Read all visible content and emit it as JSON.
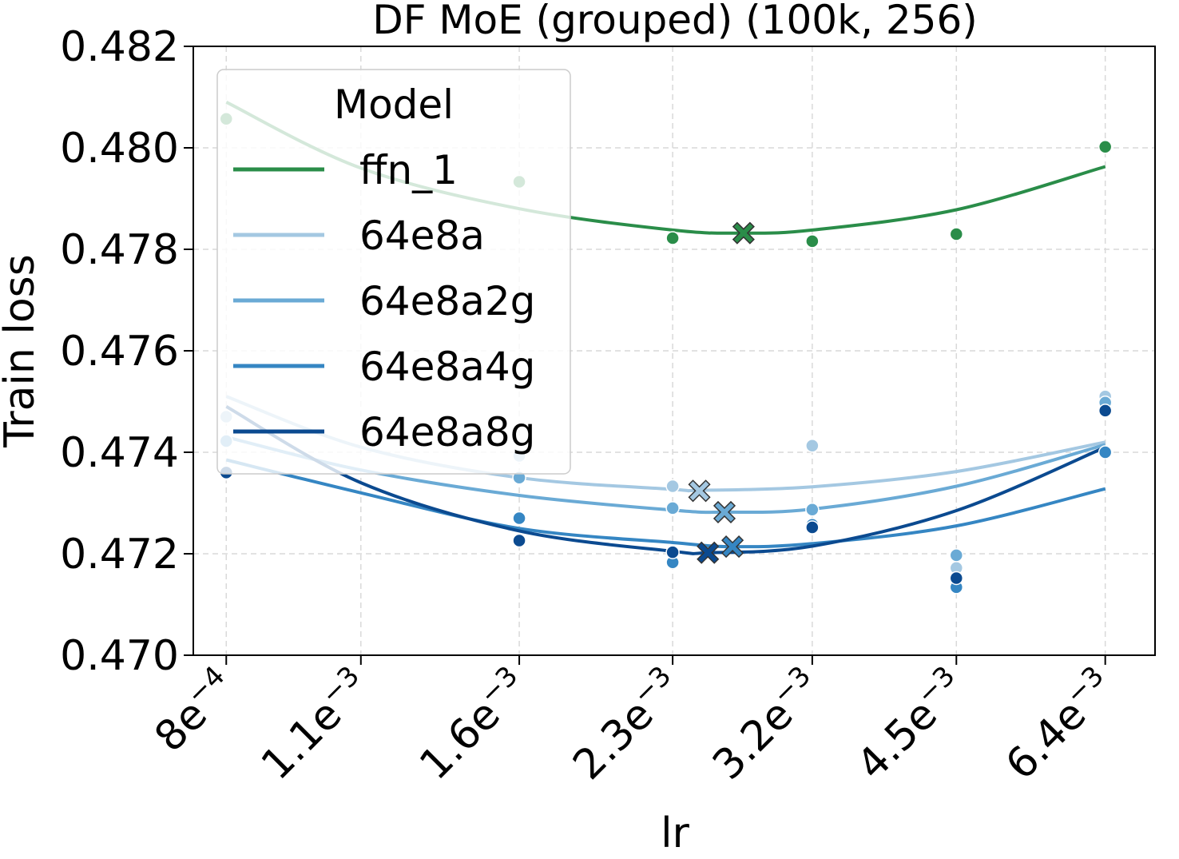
{
  "chart_data": {
    "type": "scatter",
    "title": "DF MoE (grouped) (100k, 256)",
    "xlabel": "lr",
    "ylabel": "Train loss",
    "xscale": "log",
    "xlim": [
      0.00074,
      0.0072
    ],
    "ylim": [
      0.47,
      0.482
    ],
    "grid": true,
    "legend": {
      "title": "Model",
      "placement": "upper-left"
    },
    "x_ticks": [
      {
        "value": 0.0008,
        "mantissa": "8e",
        "exp": "−4"
      },
      {
        "value": 0.0011,
        "mantissa": "1.1e",
        "exp": "−3"
      },
      {
        "value": 0.0016,
        "mantissa": "1.6e",
        "exp": "−3"
      },
      {
        "value": 0.0023,
        "mantissa": "2.3e",
        "exp": "−3"
      },
      {
        "value": 0.0032,
        "mantissa": "3.2e",
        "exp": "−3"
      },
      {
        "value": 0.0045,
        "mantissa": "4.5e",
        "exp": "−3"
      },
      {
        "value": 0.0064,
        "mantissa": "6.4e",
        "exp": "−3"
      }
    ],
    "y_ticks": [
      {
        "value": 0.47,
        "label": "0.470"
      },
      {
        "value": 0.472,
        "label": "0.472"
      },
      {
        "value": 0.474,
        "label": "0.474"
      },
      {
        "value": 0.476,
        "label": "0.476"
      },
      {
        "value": 0.478,
        "label": "0.478"
      },
      {
        "value": 0.48,
        "label": "0.480"
      },
      {
        "value": 0.482,
        "label": "0.482"
      }
    ],
    "series": [
      {
        "name": "ffn_1",
        "color": "#2a8d49",
        "points": [
          {
            "x": 0.0008,
            "y": 0.48057
          },
          {
            "x": 0.0016,
            "y": 0.47933
          },
          {
            "x": 0.0023,
            "y": 0.47822
          },
          {
            "x": 0.0032,
            "y": 0.47816
          },
          {
            "x": 0.0045,
            "y": 0.4783
          },
          {
            "x": 0.0064,
            "y": 0.48002
          }
        ],
        "fit": [
          {
            "x": 0.0008,
            "y": 0.4809
          },
          {
            "x": 0.0011,
            "y": 0.4796
          },
          {
            "x": 0.0016,
            "y": 0.4788
          },
          {
            "x": 0.0023,
            "y": 0.47838
          },
          {
            "x": 0.00272,
            "y": 0.47832
          },
          {
            "x": 0.0032,
            "y": 0.47838
          },
          {
            "x": 0.0045,
            "y": 0.47878
          },
          {
            "x": 0.0064,
            "y": 0.47963
          }
        ],
        "min": {
          "x": 0.00272,
          "y": 0.47832
        }
      },
      {
        "name": "64e8a",
        "color": "#a4c8e2",
        "points": [
          {
            "x": 0.0008,
            "y": 0.4747
          },
          {
            "x": 0.0016,
            "y": 0.47393
          },
          {
            "x": 0.0023,
            "y": 0.47333
          },
          {
            "x": 0.0032,
            "y": 0.47413
          },
          {
            "x": 0.0045,
            "y": 0.47172
          },
          {
            "x": 0.0064,
            "y": 0.4751
          }
        ],
        "fit": [
          {
            "x": 0.0008,
            "y": 0.4751
          },
          {
            "x": 0.0011,
            "y": 0.4741
          },
          {
            "x": 0.0016,
            "y": 0.4735
          },
          {
            "x": 0.0023,
            "y": 0.47327
          },
          {
            "x": 0.00245,
            "y": 0.47325
          },
          {
            "x": 0.0032,
            "y": 0.47332
          },
          {
            "x": 0.0045,
            "y": 0.47362
          },
          {
            "x": 0.0064,
            "y": 0.4742
          }
        ],
        "min": {
          "x": 0.00245,
          "y": 0.47324
        }
      },
      {
        "name": "64e8a2g",
        "color": "#6aaad5",
        "points": [
          {
            "x": 0.0008,
            "y": 0.47422
          },
          {
            "x": 0.0016,
            "y": 0.4735
          },
          {
            "x": 0.0023,
            "y": 0.4729
          },
          {
            "x": 0.0032,
            "y": 0.47287
          },
          {
            "x": 0.0045,
            "y": 0.47197
          },
          {
            "x": 0.0064,
            "y": 0.47498
          }
        ],
        "fit": [
          {
            "x": 0.0008,
            "y": 0.4743
          },
          {
            "x": 0.0011,
            "y": 0.47365
          },
          {
            "x": 0.0016,
            "y": 0.47315
          },
          {
            "x": 0.0023,
            "y": 0.47286
          },
          {
            "x": 0.0026,
            "y": 0.47282
          },
          {
            "x": 0.0032,
            "y": 0.47288
          },
          {
            "x": 0.0045,
            "y": 0.47333
          },
          {
            "x": 0.0064,
            "y": 0.47415
          }
        ],
        "min": {
          "x": 0.0026,
          "y": 0.47282
        }
      },
      {
        "name": "64e8a4g",
        "color": "#3586c3",
        "points": [
          {
            "x": 0.0008,
            "y": 0.47358
          },
          {
            "x": 0.0016,
            "y": 0.4727
          },
          {
            "x": 0.0023,
            "y": 0.47183
          },
          {
            "x": 0.0032,
            "y": 0.47257
          },
          {
            "x": 0.0045,
            "y": 0.47134
          },
          {
            "x": 0.0064,
            "y": 0.474
          }
        ],
        "fit": [
          {
            "x": 0.0008,
            "y": 0.47385
          },
          {
            "x": 0.0011,
            "y": 0.4732
          },
          {
            "x": 0.0016,
            "y": 0.4725
          },
          {
            "x": 0.0023,
            "y": 0.47222
          },
          {
            "x": 0.00265,
            "y": 0.47214
          },
          {
            "x": 0.0032,
            "y": 0.4722
          },
          {
            "x": 0.0045,
            "y": 0.47255
          },
          {
            "x": 0.0064,
            "y": 0.47328
          }
        ],
        "min": {
          "x": 0.00265,
          "y": 0.47214
        }
      },
      {
        "name": "64e8a8g",
        "color": "#0b4a90",
        "points": [
          {
            "x": 0.0008,
            "y": 0.4736
          },
          {
            "x": 0.0016,
            "y": 0.47226
          },
          {
            "x": 0.0023,
            "y": 0.47203
          },
          {
            "x": 0.0032,
            "y": 0.47252
          },
          {
            "x": 0.0045,
            "y": 0.47152
          },
          {
            "x": 0.0064,
            "y": 0.47482
          }
        ],
        "fit": [
          {
            "x": 0.0008,
            "y": 0.4749
          },
          {
            "x": 0.0011,
            "y": 0.4734
          },
          {
            "x": 0.0016,
            "y": 0.47245
          },
          {
            "x": 0.0023,
            "y": 0.47205
          },
          {
            "x": 0.0025,
            "y": 0.47202
          },
          {
            "x": 0.0032,
            "y": 0.47215
          },
          {
            "x": 0.0045,
            "y": 0.47285
          },
          {
            "x": 0.0064,
            "y": 0.4741
          }
        ],
        "min": {
          "x": 0.0025,
          "y": 0.47202
        }
      }
    ]
  }
}
